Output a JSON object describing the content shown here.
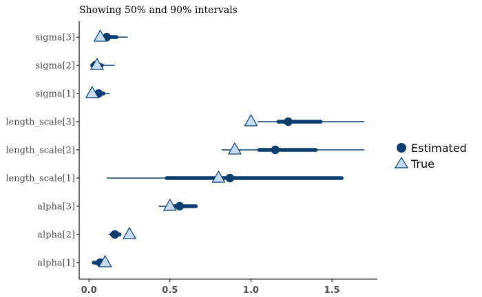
{
  "chart_data": {
    "type": "interval",
    "subtitle": "Showing 50% and 90% intervals",
    "xlabel": "",
    "ylabel": "",
    "xlim": [
      -0.06,
      1.78
    ],
    "x_ticks": [
      0.0,
      0.5,
      1.0,
      1.5
    ],
    "x_tick_labels": [
      "0.0",
      "0.5",
      "1.0",
      "1.5"
    ],
    "grid": false,
    "legend_position": "right",
    "legend": [
      {
        "name": "Estimated",
        "marker": "circle",
        "color": "#0b3d6e"
      },
      {
        "name": "True",
        "marker": "triangle",
        "color": "#c6dbef"
      }
    ],
    "colors": {
      "estimate": "#0b3d6e",
      "truth_fill": "#c6dbef",
      "truth_stroke": "#0b3d6e"
    },
    "parameters": [
      {
        "label": "sigma[3]",
        "outer": [
          0.05,
          0.24
        ],
        "inner": [
          0.09,
          0.17
        ],
        "estimate": 0.11,
        "truth": 0.07
      },
      {
        "label": "sigma[2]",
        "outer": [
          0.01,
          0.16
        ],
        "inner": [
          0.02,
          0.08
        ],
        "estimate": 0.04,
        "truth": 0.05
      },
      {
        "label": "sigma[1]",
        "outer": [
          0.02,
          0.13
        ],
        "inner": [
          0.04,
          0.09
        ],
        "estimate": 0.06,
        "truth": 0.02
      },
      {
        "label": "length_scale[3]",
        "outer": [
          1.04,
          1.7
        ],
        "inner": [
          1.17,
          1.43
        ],
        "estimate": 1.23,
        "truth": 1.0
      },
      {
        "label": "length_scale[2]",
        "outer": [
          0.82,
          1.7
        ],
        "inner": [
          1.05,
          1.4
        ],
        "estimate": 1.15,
        "truth": 0.9
      },
      {
        "label": "length_scale[1]",
        "outer": [
          0.11,
          1.56
        ],
        "inner": [
          0.48,
          1.56
        ],
        "estimate": 0.87,
        "truth": 0.8
      },
      {
        "label": "alpha[3]",
        "outer": [
          0.43,
          0.66
        ],
        "inner": [
          0.5,
          0.66
        ],
        "estimate": 0.56,
        "truth": 0.5
      },
      {
        "label": "alpha[2]",
        "outer": [
          0.12,
          0.2
        ],
        "inner": [
          0.14,
          0.19
        ],
        "estimate": 0.16,
        "truth": 0.25
      },
      {
        "label": "alpha[1]",
        "outer": [
          0.02,
          0.1
        ],
        "inner": [
          0.03,
          0.09
        ],
        "estimate": 0.07,
        "truth": 0.1
      }
    ]
  }
}
